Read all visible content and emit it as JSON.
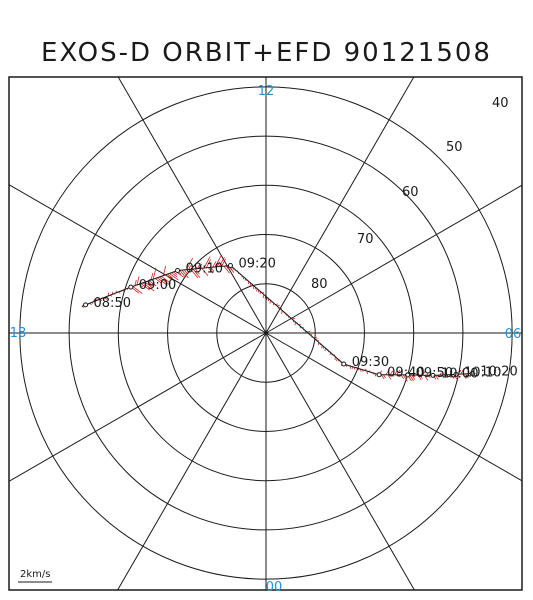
{
  "chart_data": {
    "type": "polar-orbit",
    "title": "EXOS-D ORBIT+EFD 90121508",
    "mlt_labels": [
      "12",
      "06",
      "00",
      "18"
    ],
    "latitude_labels": [
      "40",
      "50",
      "60",
      "70",
      "80"
    ],
    "latitude_rings": [
      80,
      70,
      60,
      50,
      40
    ],
    "colatitude_range": [
      0,
      52
    ],
    "time_labels": [
      "08:50",
      "09:00",
      "09:10",
      "09:20",
      "09:30",
      "09:40",
      "09:50",
      "10:00",
      "10:10",
      "10:20"
    ],
    "orbit": [
      {
        "time": "08:50",
        "mlt": 17.41,
        "lat": 52.9
      },
      {
        "time": "09:00",
        "mlt": 16.75,
        "lat": 61.0
      },
      {
        "time": "09:10",
        "mlt": 15.65,
        "lat": 68.0
      },
      {
        "time": "09:20",
        "mlt": 13.85,
        "lat": 74.5
      },
      {
        "time": "09:30",
        "mlt": 4.55,
        "lat": 73.0
      },
      {
        "time": "09:40",
        "mlt": 4.65,
        "lat": 65.5
      },
      {
        "time": "09:50",
        "mlt": 4.9,
        "lat": 60.0
      },
      {
        "time": "10:00",
        "mlt": 5.05,
        "lat": 55.0
      },
      {
        "time": "10:10",
        "mlt": 5.18,
        "lat": 50.5
      },
      {
        "time": "10:20",
        "mlt": 5.26,
        "lat": 47.3
      }
    ],
    "efd_scale_label": "2km/s",
    "colors": {
      "orbit": "#1a1a1a",
      "efd": "#d42020",
      "grid": "#1a1a1a",
      "mlt_label": "#2a8fd0"
    }
  }
}
